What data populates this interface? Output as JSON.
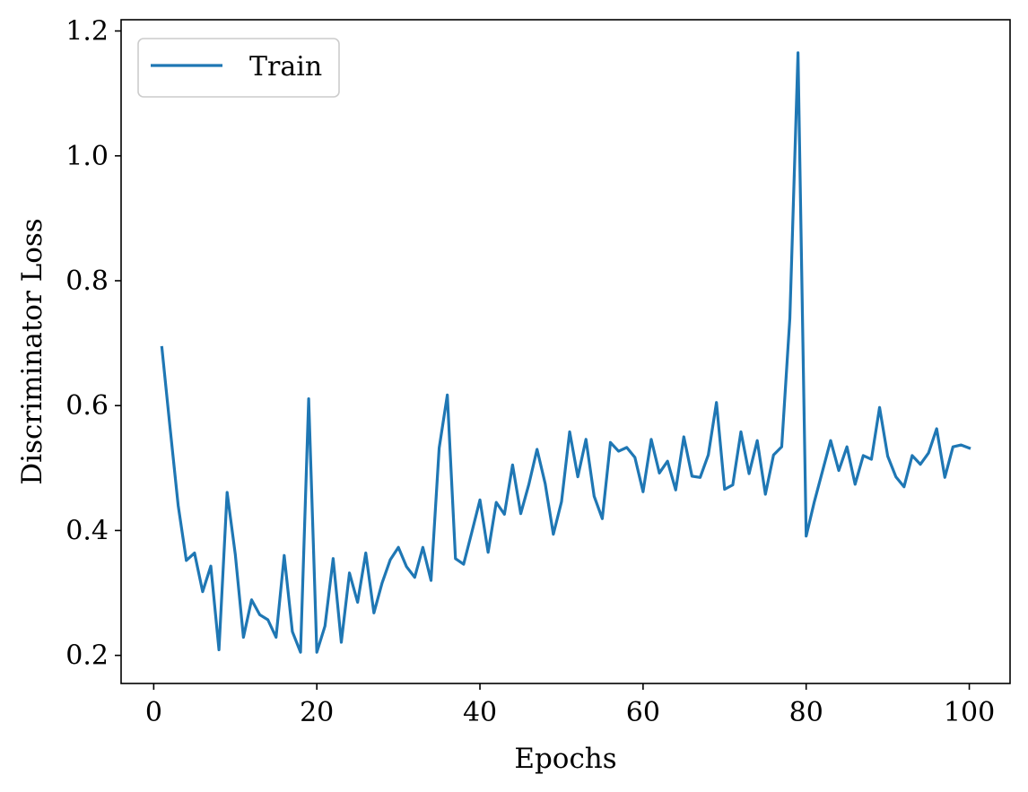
{
  "chart_data": {
    "type": "line",
    "title": "",
    "xlabel": "Epochs",
    "ylabel": "Discriminator Loss",
    "xlim": [
      -4,
      105
    ],
    "ylim": [
      0.155,
      1.218
    ],
    "xticks": [
      0,
      20,
      40,
      60,
      80,
      100
    ],
    "yticks": [
      0.2,
      0.4,
      0.6,
      0.8,
      1.0,
      1.2
    ],
    "xtick_labels": [
      "0",
      "20",
      "40",
      "60",
      "80",
      "100"
    ],
    "ytick_labels": [
      "0.2",
      "0.4",
      "0.6",
      "0.8",
      "1.0",
      "1.2"
    ],
    "grid": false,
    "legend": {
      "position": "top-left",
      "entries": [
        "Train"
      ]
    },
    "series": [
      {
        "name": "Train",
        "color": "#1f77b4",
        "x": [
          1,
          2,
          3,
          4,
          5,
          6,
          7,
          8,
          9,
          10,
          11,
          12,
          13,
          14,
          15,
          16,
          17,
          18,
          19,
          20,
          21,
          22,
          23,
          24,
          25,
          26,
          27,
          28,
          29,
          30,
          31,
          32,
          33,
          34,
          35,
          36,
          37,
          38,
          39,
          40,
          41,
          42,
          43,
          44,
          45,
          46,
          47,
          48,
          49,
          50,
          51,
          52,
          53,
          54,
          55,
          56,
          57,
          58,
          59,
          60,
          61,
          62,
          63,
          64,
          65,
          66,
          67,
          68,
          69,
          70,
          71,
          72,
          73,
          74,
          75,
          76,
          77,
          78,
          79,
          80,
          81,
          82,
          83,
          84,
          85,
          86,
          87,
          88,
          89,
          90,
          91,
          92,
          93,
          94,
          95,
          96,
          97,
          98,
          99,
          100
        ],
        "values": [
          0.693,
          0.565,
          0.44,
          0.352,
          0.364,
          0.302,
          0.343,
          0.209,
          0.461,
          0.362,
          0.229,
          0.289,
          0.265,
          0.257,
          0.229,
          0.36,
          0.238,
          0.205,
          0.611,
          0.205,
          0.247,
          0.355,
          0.221,
          0.332,
          0.285,
          0.364,
          0.268,
          0.316,
          0.353,
          0.373,
          0.342,
          0.325,
          0.373,
          0.32,
          0.532,
          0.617,
          0.355,
          0.346,
          0.397,
          0.449,
          0.365,
          0.445,
          0.426,
          0.505,
          0.427,
          0.474,
          0.53,
          0.475,
          0.394,
          0.446,
          0.558,
          0.486,
          0.546,
          0.455,
          0.419,
          0.541,
          0.527,
          0.533,
          0.517,
          0.462,
          0.546,
          0.492,
          0.511,
          0.465,
          0.55,
          0.487,
          0.485,
          0.521,
          0.605,
          0.466,
          0.473,
          0.558,
          0.491,
          0.544,
          0.458,
          0.521,
          0.534,
          0.74,
          1.165,
          0.391,
          0.446,
          0.495,
          0.544,
          0.496,
          0.534,
          0.474,
          0.52,
          0.514,
          0.597,
          0.519,
          0.486,
          0.47,
          0.52,
          0.506,
          0.524,
          0.563,
          0.485,
          0.534,
          0.537,
          0.532
        ]
      }
    ]
  }
}
